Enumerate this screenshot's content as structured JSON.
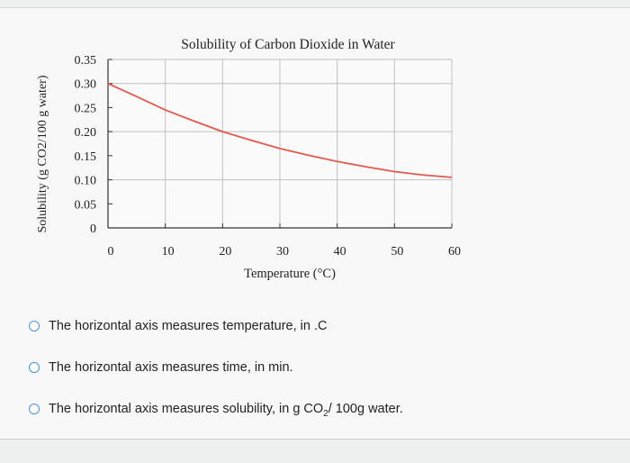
{
  "chart_data": {
    "type": "line",
    "title": "Solubility of Carbon Dioxide in Water",
    "xlabel": "Temperature (°C)",
    "ylabel": "Solubility (g CO2/100 g water)",
    "xlim": [
      0,
      60
    ],
    "ylim": [
      0,
      0.35
    ],
    "x_ticks": [
      "0",
      "10",
      "20",
      "30",
      "40",
      "50",
      "60"
    ],
    "y_ticks": [
      "0",
      "0.05",
      "0.10",
      "0.15",
      "0.20",
      "0.25",
      "0.30",
      "0.35"
    ],
    "grid": true,
    "series": [
      {
        "color": "#e05a4f",
        "x": [
          0,
          5,
          10,
          15,
          20,
          25,
          30,
          35,
          40,
          45,
          50,
          55,
          60
        ],
        "y": [
          0.3,
          0.273,
          0.245,
          0.222,
          0.2,
          0.182,
          0.165,
          0.151,
          0.138,
          0.127,
          0.117,
          0.11,
          0.105
        ]
      }
    ]
  },
  "options": [
    {
      "text": "The horizontal axis measures temperature, in  .C"
    },
    {
      "text": "The horizontal axis measures time, in min."
    },
    {
      "text_before": "The horizontal axis measures solubility, in  g CO",
      "subscript": "2",
      "text_after": "/ 100g water."
    }
  ]
}
